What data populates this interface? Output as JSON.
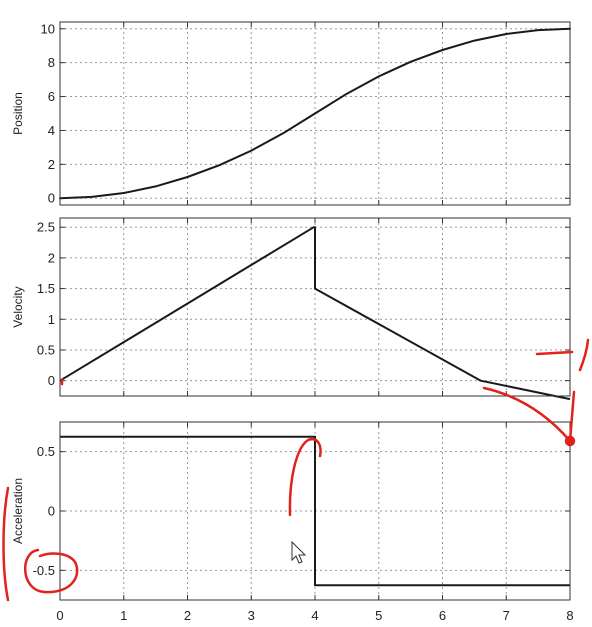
{
  "chart_data": [
    {
      "type": "line",
      "ylabel": "Position",
      "xlim": [
        0,
        8
      ],
      "ylim": [
        -0.4,
        10.4
      ],
      "x_ticks": [
        0,
        1,
        2,
        3,
        4,
        5,
        6,
        7,
        8
      ],
      "y_ticks": [
        0,
        2,
        4,
        6,
        8,
        10
      ],
      "y_tick_labels": [
        "0",
        "2",
        "4",
        "6",
        "8",
        "10"
      ],
      "grid": true,
      "series": [
        {
          "points": [
            [
              0,
              0
            ],
            [
              0.5,
              0.08
            ],
            [
              1,
              0.31
            ],
            [
              1.5,
              0.7
            ],
            [
              2,
              1.25
            ],
            [
              2.5,
              1.95
            ],
            [
              3,
              2.81
            ],
            [
              3.5,
              3.83
            ],
            [
              4,
              5.0
            ],
            [
              4.5,
              6.17
            ],
            [
              5,
              7.19
            ],
            [
              5.5,
              8.05
            ],
            [
              6,
              8.75
            ],
            [
              6.5,
              9.3
            ],
            [
              7,
              9.69
            ],
            [
              7.5,
              9.92
            ],
            [
              8,
              10
            ]
          ]
        }
      ]
    },
    {
      "type": "line",
      "ylabel": "Velocity",
      "xlim": [
        0,
        8
      ],
      "ylim": [
        -0.25,
        2.65
      ],
      "x_ticks": [
        0,
        1,
        2,
        3,
        4,
        5,
        6,
        7,
        8
      ],
      "y_ticks": [
        0,
        0.5,
        1,
        1.5,
        2,
        2.5
      ],
      "y_tick_labels": [
        "0",
        "0.5",
        "1",
        "1.5",
        "2",
        "2.5"
      ],
      "grid": true,
      "series": [
        {
          "points": [
            [
              0,
              0
            ],
            [
              3.9,
              2.45
            ],
            [
              3.98,
              2.5
            ],
            [
              4,
              2.5
            ],
            [
              4,
              1.5
            ],
            [
              6.6,
              0
            ],
            [
              8,
              -0.3
            ]
          ]
        }
      ]
    },
    {
      "type": "line",
      "ylabel": "Acceleration",
      "xlim": [
        0,
        8
      ],
      "ylim": [
        -0.75,
        0.75
      ],
      "x_ticks": [
        0,
        1,
        2,
        3,
        4,
        5,
        6,
        7,
        8
      ],
      "x_tick_labels": [
        "0",
        "1",
        "2",
        "3",
        "4",
        "5",
        "6",
        "7",
        "8"
      ],
      "y_ticks": [
        -0.5,
        0,
        0.5
      ],
      "y_tick_labels": [
        "-0.5",
        "0",
        "0.5"
      ],
      "grid": true,
      "series": [
        {
          "points": [
            [
              0,
              0.625
            ],
            [
              4,
              0.625
            ],
            [
              4,
              -0.625
            ],
            [
              8,
              -0.625
            ]
          ]
        }
      ]
    }
  ],
  "colors": {
    "line": "#1a1a1a",
    "grid": "#9a9a9a",
    "axis": "#333333",
    "annotation": "#e0231b"
  }
}
